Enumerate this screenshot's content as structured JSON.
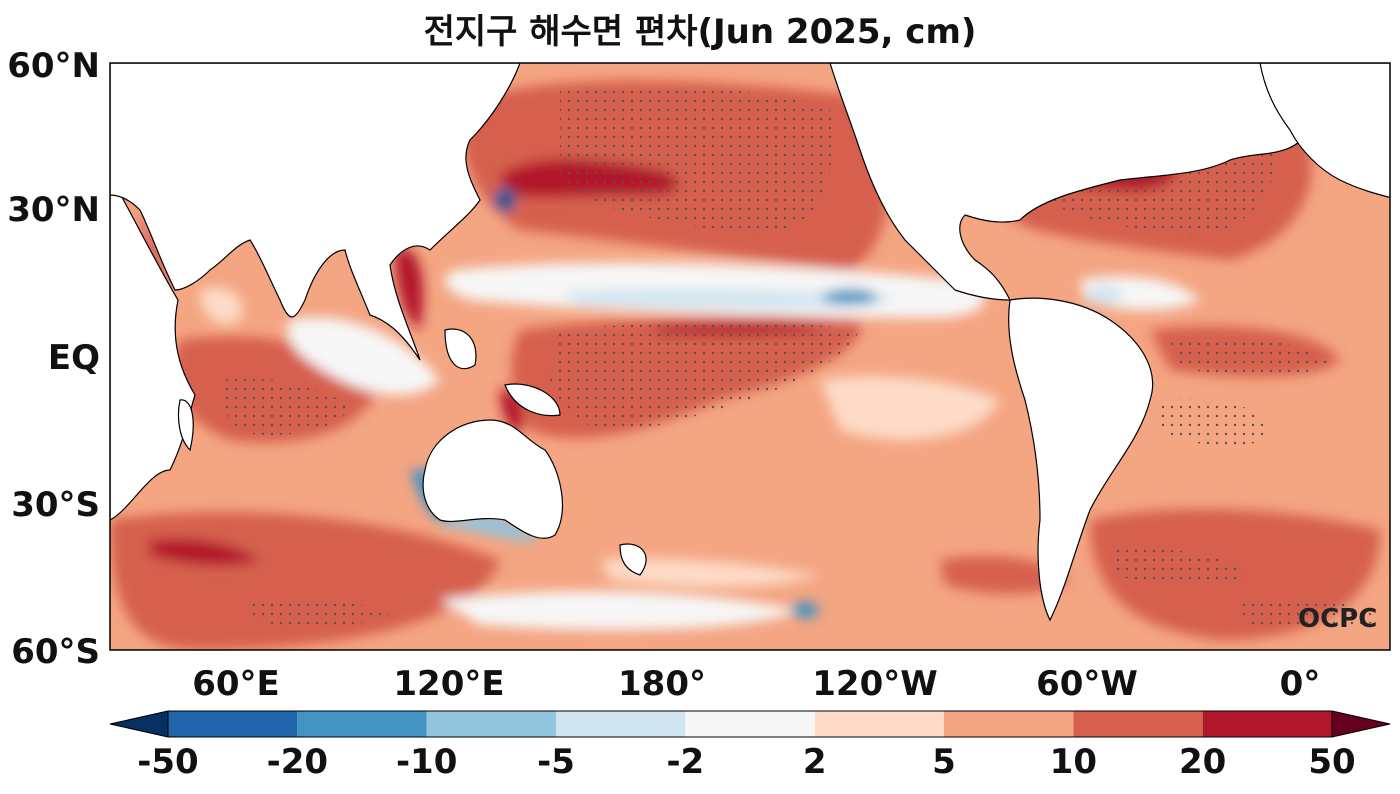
{
  "title": "전지구 해수면 편차(Jun 2025, cm)",
  "watermark": "OCPC",
  "lat_labels": [
    "60°N",
    "30°N",
    "EQ",
    "30°S",
    "60°S"
  ],
  "lon_labels": [
    "60°E",
    "120°E",
    "180°",
    "120°W",
    "60°W",
    "0°"
  ],
  "colorbar": {
    "tick_labels": [
      "-50",
      "-20",
      "-10",
      "-5",
      "-2",
      "2",
      "5",
      "10",
      "20",
      "50"
    ],
    "colors": [
      "#053061",
      "#2166ac",
      "#4393c3",
      "#92c5de",
      "#d1e5f0",
      "#f7f7f7",
      "#fddbc7",
      "#f4a582",
      "#d6604d",
      "#b2182b",
      "#67001f"
    ],
    "extend": "both"
  },
  "colors": {
    "land": "#ffffff",
    "coast": "#000000",
    "stipple": "#555555"
  }
}
